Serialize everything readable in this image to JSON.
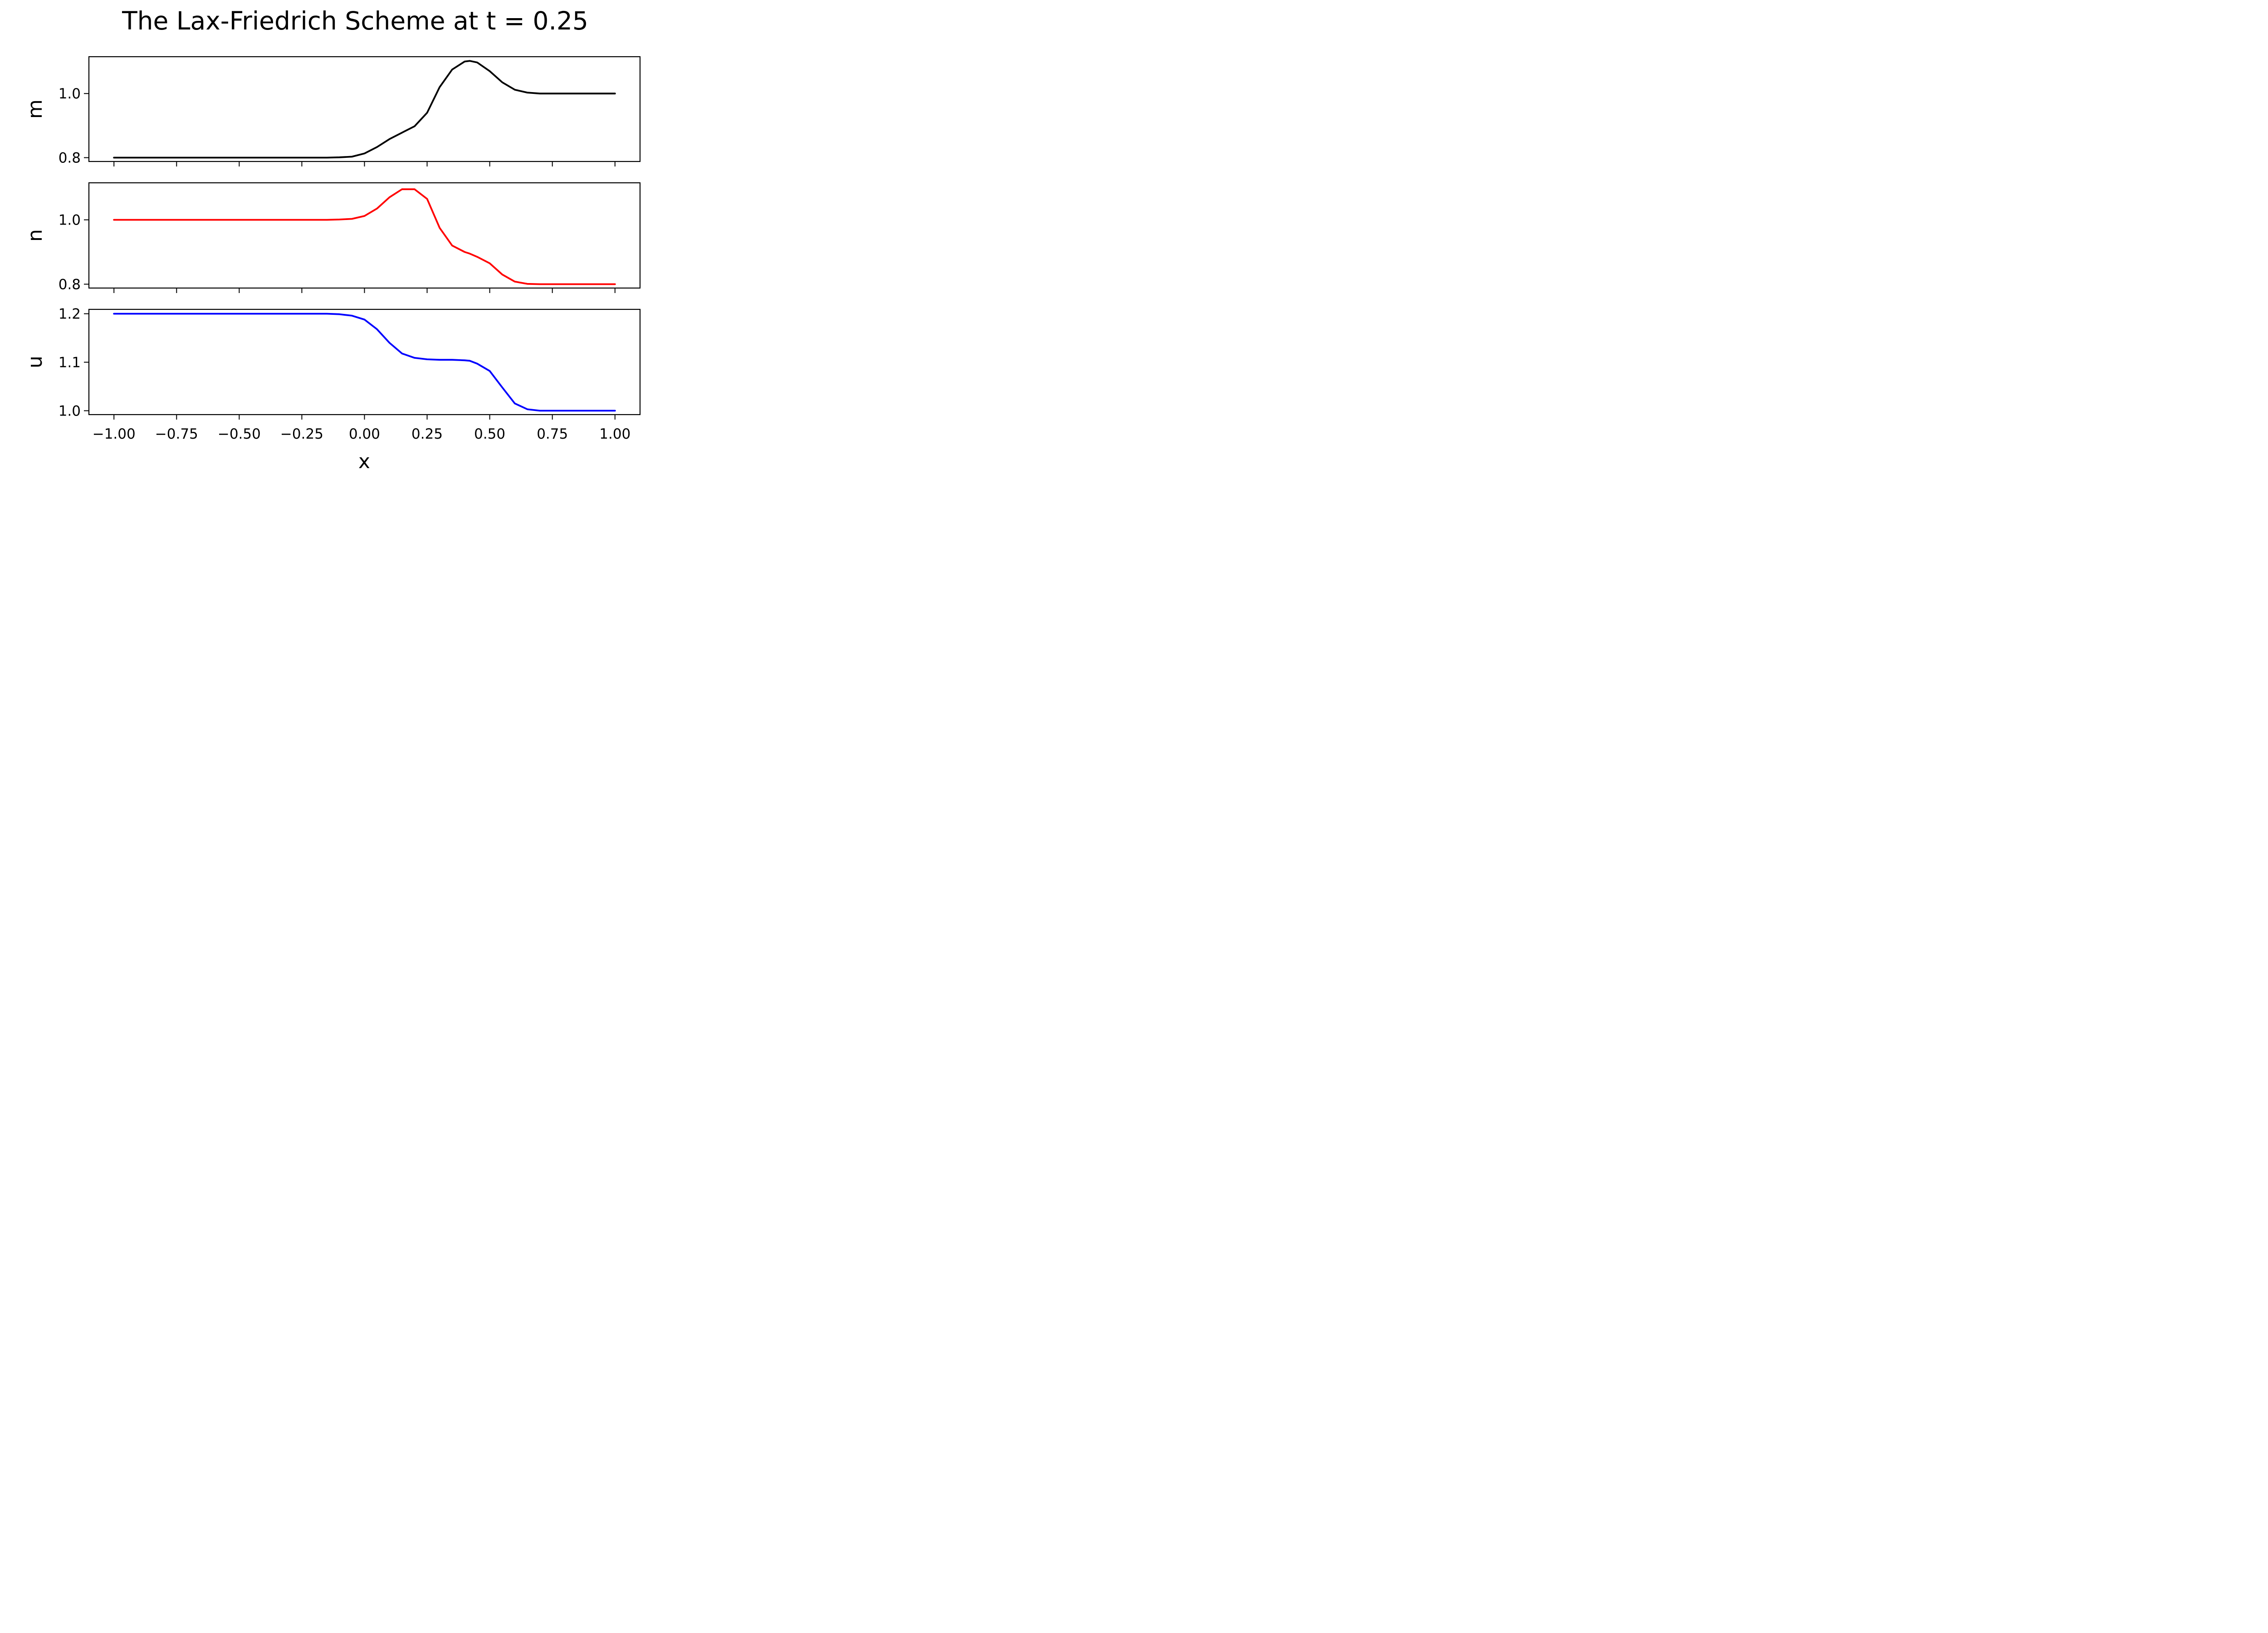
{
  "chart_data": {
    "type": "line",
    "title": "The Lax-Friedrich Scheme at t = 0.25",
    "xlabel": "x",
    "xlim": [
      -1.1,
      1.1
    ],
    "x_ticks": [
      -1.0,
      -0.75,
      -0.5,
      -0.25,
      0.0,
      0.25,
      0.5,
      0.75,
      1.0
    ],
    "x_tick_labels": [
      "−1.00",
      "−0.75",
      "−0.50",
      "−0.25",
      "0.00",
      "0.25",
      "0.50",
      "0.75",
      "1.00"
    ],
    "x_tick_labels_shown_on": "bottom panel only (shared x axis)",
    "x": [
      -1.0,
      -0.5,
      -0.25,
      -0.15,
      -0.1,
      -0.05,
      0.0,
      0.05,
      0.1,
      0.15,
      0.2,
      0.25,
      0.3,
      0.35,
      0.4,
      0.42,
      0.45,
      0.5,
      0.55,
      0.6,
      0.65,
      0.7,
      0.75,
      1.0
    ],
    "panels": [
      {
        "name": "m",
        "ylabel": "m",
        "color": "#000000",
        "ylim": [
          0.788,
          1.115
        ],
        "y_ticks": [
          0.8,
          1.0
        ],
        "y_tick_labels": [
          "0.8",
          "1.0"
        ],
        "values": [
          0.8,
          0.8,
          0.8,
          0.8,
          0.801,
          0.803,
          0.813,
          0.833,
          0.858,
          0.878,
          0.898,
          0.94,
          1.02,
          1.075,
          1.1,
          1.102,
          1.097,
          1.07,
          1.035,
          1.012,
          1.003,
          1.0,
          1.0,
          1.0
        ]
      },
      {
        "name": "n",
        "ylabel": "n",
        "color": "#ff0000",
        "ylim": [
          0.788,
          1.115
        ],
        "y_ticks": [
          0.8,
          1.0
        ],
        "y_tick_labels": [
          "0.8",
          "1.0"
        ],
        "values": [
          1.0,
          1.0,
          1.0,
          1.0,
          1.001,
          1.003,
          1.012,
          1.035,
          1.07,
          1.095,
          1.095,
          1.065,
          0.975,
          0.92,
          0.9,
          0.895,
          0.885,
          0.865,
          0.83,
          0.808,
          0.801,
          0.8,
          0.8,
          0.8
        ]
      },
      {
        "name": "u",
        "ylabel": "u",
        "color": "#0000ff",
        "ylim": [
          0.992,
          1.209
        ],
        "y_ticks": [
          1.0,
          1.1,
          1.2
        ],
        "y_tick_labels": [
          "1.0",
          "1.1",
          "1.2"
        ],
        "values": [
          1.2,
          1.2,
          1.2,
          1.2,
          1.199,
          1.196,
          1.188,
          1.168,
          1.14,
          1.118,
          1.109,
          1.106,
          1.105,
          1.105,
          1.104,
          1.103,
          1.097,
          1.082,
          1.048,
          1.015,
          1.003,
          1.0,
          1.0,
          1.0
        ]
      }
    ]
  }
}
